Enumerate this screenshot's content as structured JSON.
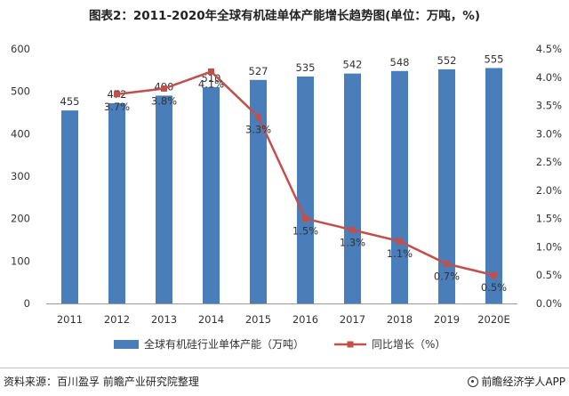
{
  "title": "图表2：2011-2020年全球有机硅单体产能增长趋势图(单位：万吨，%)",
  "source": "资料来源：百川盈孚 前瞻产业研究院整理",
  "brand": "前瞻经济学人APP",
  "chart_data": {
    "type": "bar",
    "categories": [
      "2011",
      "2012",
      "2013",
      "2014",
      "2015",
      "2016",
      "2017",
      "2018",
      "2019",
      "2020E"
    ],
    "series": [
      {
        "name": "全球有机硅行业单体产能（万吨）",
        "type": "bar",
        "axis": "left",
        "values": [
          455,
          472,
          490,
          510,
          527,
          535,
          542,
          548,
          552,
          555
        ],
        "labels": [
          "455",
          "472",
          "490",
          "510",
          "527",
          "535",
          "542",
          "548",
          "552",
          "555"
        ],
        "color": "#4a7ebb"
      },
      {
        "name": "同比增长（%）",
        "type": "line",
        "axis": "right",
        "values": [
          null,
          3.7,
          3.8,
          4.1,
          3.3,
          1.5,
          1.3,
          1.1,
          0.7,
          0.5
        ],
        "labels": [
          "",
          "3.7%",
          "3.8%",
          "4.1%",
          "3.3%",
          "1.5%",
          "1.3%",
          "1.1%",
          "0.7%",
          "0.5%"
        ],
        "color": "#c0504d"
      }
    ],
    "ylim": [
      0,
      600
    ],
    "y_ticks": [
      "0",
      "100",
      "200",
      "300",
      "400",
      "500",
      "600"
    ],
    "y2lim": [
      0,
      4.5
    ],
    "y2_ticks": [
      "0.0%",
      "0.5%",
      "1.0%",
      "1.5%",
      "2.0%",
      "2.5%",
      "3.0%",
      "3.5%",
      "4.0%",
      "4.5%"
    ],
    "legend_position": "bottom",
    "grid": false
  }
}
